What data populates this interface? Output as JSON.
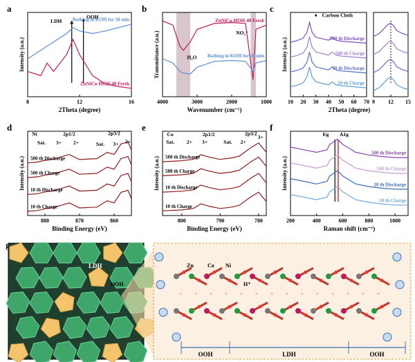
{
  "chart_data": [
    {
      "type": "line",
      "panel": "a",
      "xlabel": "2Theta (degree)",
      "ylabel": "Intensity (a.u.)",
      "xlim": [
        8,
        16
      ],
      "xticks": [
        8,
        12,
        16
      ],
      "ylim": [
        0,
        10
      ],
      "x": [
        8,
        9,
        9.5,
        10,
        11,
        11.5,
        12,
        13,
        14,
        15,
        16
      ],
      "series": [
        {
          "name": "Bathing in KOH for 30 min",
          "color": "#5b8fd0",
          "values": [
            4.5,
            5.5,
            6,
            6.5,
            7.5,
            8.2,
            7.8,
            7.5,
            7.8,
            8.2,
            8.6
          ]
        },
        {
          "name": "ZnNiCo-HOH-40 Fresh",
          "color": "#c2185b",
          "values": [
            3,
            2.5,
            4,
            3,
            5,
            6.8,
            5,
            2.5,
            1.5,
            1.2,
            1
          ]
        }
      ],
      "annotations": [
        "LDH",
        "♣",
        "OOH",
        "♦"
      ]
    },
    {
      "type": "line",
      "panel": "b",
      "xlabel": "Wavenumber (cm⁻¹)",
      "ylabel": "Transmittance (a.u.)",
      "xlim": [
        4000,
        1000
      ],
      "xticks": [
        4000,
        3000,
        2000,
        1000
      ],
      "ylim": [
        0,
        10
      ],
      "x": [
        4000,
        3700,
        3500,
        3400,
        3200,
        3000,
        2500,
        2000,
        1600,
        1384,
        1300,
        1000
      ],
      "series": [
        {
          "name": "ZnNiCo-HOH-40 Fresh",
          "color": "#c2185b",
          "values": [
            9,
            8.5,
            6,
            5.5,
            6.5,
            8,
            8.7,
            8.8,
            8.7,
            2,
            8,
            8.5
          ]
        },
        {
          "name": "Bathing in KOH for 30 min",
          "color": "#5b8fd0",
          "values": [
            4.5,
            4,
            3,
            2.8,
            2.7,
            3.5,
            4.2,
            4.3,
            4.2,
            3,
            4,
            4.3
          ]
        }
      ],
      "annotations": [
        "H₂O",
        "NO₃⁻"
      ]
    },
    {
      "type": "line",
      "panel": "c",
      "xlabel": "2Theta (degree)",
      "ylabel": "Intensity (a.u.)",
      "xlim": [
        10,
        70
      ],
      "xticks": [
        10,
        20,
        30,
        40,
        50,
        60,
        70
      ],
      "ylim": [
        0,
        17
      ],
      "x": [
        10,
        15,
        20,
        23,
        25,
        27,
        30,
        40,
        43,
        46,
        50,
        60,
        70
      ],
      "series": [
        {
          "name": "10 th Charge",
          "color": "#5b9bd5",
          "values": [
            2,
            2.3,
            2.8,
            4,
            6,
            4,
            3,
            2.4,
            3,
            2.4,
            2.2,
            2,
            1.8
          ]
        },
        {
          "name": "10 th Discharge",
          "color": "#5a6fc8",
          "values": [
            5,
            5.3,
            5.8,
            7,
            9,
            7,
            6,
            5.4,
            6,
            5.4,
            5.2,
            5,
            4.8
          ]
        },
        {
          "name": "500 th Charge",
          "color": "#a07cd0",
          "values": [
            8,
            8.3,
            8.8,
            10,
            12,
            10,
            9,
            8.4,
            9,
            8.4,
            8.2,
            8,
            7.8
          ]
        },
        {
          "name": "500 th Discharge",
          "color": "#7b4fc0",
          "values": [
            11,
            11.3,
            11.8,
            13,
            15,
            13,
            12,
            11.4,
            12,
            11.4,
            11.2,
            11,
            10.8
          ]
        }
      ],
      "annotations": [
        "♦",
        "Carbon Cloth"
      ]
    },
    {
      "type": "line",
      "xlim": [
        9,
        15
      ],
      "xticks": [
        9,
        12,
        15
      ],
      "ylim": [
        0,
        14
      ],
      "x": [
        9,
        10,
        11,
        11.5,
        12,
        12.5,
        13,
        14,
        15
      ],
      "series": [
        {
          "color": "#5b9bd5",
          "values": [
            1,
            1.5,
            2.5,
            3,
            3.2,
            2.8,
            2,
            1.5,
            1.2
          ]
        },
        {
          "color": "#5a6fc8",
          "values": [
            4,
            4.5,
            5.5,
            6,
            6.2,
            5.8,
            5,
            4.5,
            4.2
          ]
        },
        {
          "color": "#a07cd0",
          "values": [
            7,
            7.5,
            8.5,
            9,
            9.2,
            8.8,
            8,
            7.5,
            7.2
          ]
        },
        {
          "color": "#7b4fc0",
          "values": [
            10,
            10.5,
            11.5,
            12,
            12.2,
            11.8,
            11,
            10.5,
            10.2
          ]
        }
      ]
    },
    {
      "type": "line",
      "panel": "d",
      "xlabel": "Binding Energy (eV)",
      "ylabel": "Intensity (a.u.)",
      "xlim": [
        885,
        855
      ],
      "xticks": [
        880,
        870,
        860
      ],
      "ylim": [
        0,
        20
      ],
      "x": [
        885,
        882,
        880,
        878,
        875,
        873,
        870,
        865,
        862,
        860,
        858,
        856,
        855
      ],
      "series": [
        {
          "name": "10 th Charge",
          "color": "#8b1a1a",
          "values": [
            1,
            1.2,
            1.6,
            1.8,
            2.5,
            3,
            1.8,
            2,
            3.5,
            3,
            5.5,
            6,
            4
          ]
        },
        {
          "name": "10 th Discharge",
          "color": "#8b1a1a",
          "values": [
            5,
            5.2,
            5.6,
            5.8,
            6.5,
            7,
            5.8,
            6,
            7.5,
            7,
            9.5,
            10,
            8
          ]
        },
        {
          "name": "500 th Charge",
          "color": "#8b1a1a",
          "values": [
            9,
            9.2,
            9.6,
            9.8,
            10.5,
            11,
            9.8,
            10,
            11.5,
            11,
            13.5,
            14,
            12
          ]
        },
        {
          "name": "500 th Discharge",
          "color": "#8b1a1a",
          "values": [
            12.5,
            12.7,
            13.1,
            13.3,
            14,
            14.5,
            13.3,
            13.5,
            15,
            14.5,
            17,
            17.5,
            15.5
          ]
        }
      ],
      "annotations": [
        "Ni",
        "2p1/2",
        "2p3/2",
        "Sat.",
        "3+",
        "2+",
        "Sat.",
        "3+",
        "2+"
      ]
    },
    {
      "type": "line",
      "panel": "e",
      "xlabel": "Binding Energy (eV)",
      "ylabel": "Intensity (a.u.)",
      "xlim": [
        805,
        778
      ],
      "xticks": [
        800,
        790,
        780
      ],
      "ylim": [
        0,
        18
      ],
      "x": [
        805,
        800,
        797,
        795,
        793,
        790,
        787,
        785,
        782,
        780,
        778
      ],
      "series": [
        {
          "name": "10 th Charge",
          "color": "#8b1a1a",
          "values": [
            1,
            1.2,
            1.5,
            2.5,
            2,
            1.5,
            1.8,
            2.2,
            4,
            5,
            3
          ]
        },
        {
          "name": "10 th Discharge",
          "color": "#8b1a1a",
          "values": [
            5,
            5.2,
            5.5,
            6.5,
            6,
            5.5,
            5.8,
            6.2,
            8,
            9,
            7
          ]
        },
        {
          "name": "500 th Charge",
          "color": "#8b1a1a",
          "values": [
            8.5,
            8.7,
            9,
            10,
            9.5,
            9,
            9.3,
            9.7,
            11.5,
            12.5,
            10.5
          ]
        },
        {
          "name": "500 th Discharge",
          "color": "#8b1a1a",
          "values": [
            11.5,
            11.7,
            12,
            13,
            12.5,
            12,
            12.3,
            12.7,
            14.5,
            15.5,
            13.5
          ]
        }
      ],
      "annotations": [
        "Co",
        "2p1/2",
        "2p3/2",
        "Sat.",
        "2+",
        "3+",
        "Sat.",
        "2+",
        "3+"
      ]
    },
    {
      "type": "line",
      "panel": "f",
      "xlabel": "Raman shift (cm⁻¹)",
      "ylabel": "Intensity (a.u.)",
      "xlim": [
        200,
        1100
      ],
      "xticks": [
        200,
        400,
        600,
        800,
        1000
      ],
      "ylim": [
        0,
        16
      ],
      "x": [
        200,
        300,
        400,
        480,
        500,
        530,
        560,
        600,
        700,
        800,
        900,
        1000,
        1100
      ],
      "series": [
        {
          "name": "10 th Charge",
          "color": "#6fa8dc",
          "values": [
            4,
            3.5,
            3,
            3.5,
            4.5,
            5,
            5.5,
            4.5,
            3,
            2.5,
            2.2,
            2,
            2
          ]
        },
        {
          "name": "10 th Discharge",
          "color": "#3b6fb6",
          "values": [
            7,
            6.5,
            6,
            6.5,
            7.5,
            8,
            8.5,
            7.5,
            6,
            5.5,
            5.2,
            5,
            5
          ]
        },
        {
          "name": "500 th Charge",
          "color": "#c39bd3",
          "values": [
            10,
            9.5,
            9,
            9.5,
            10.5,
            11,
            11.5,
            10.5,
            9,
            8.5,
            8.2,
            8,
            8
          ]
        },
        {
          "name": "500 th Discharge",
          "color": "#8e44ad",
          "values": [
            13,
            12.5,
            12,
            12.5,
            13.5,
            14,
            14.5,
            13.5,
            12,
            11.5,
            11.2,
            11,
            11
          ]
        }
      ],
      "annotations": [
        "Eg",
        "A1g"
      ]
    }
  ],
  "diagram": {
    "panel": "g",
    "labels": [
      "LDH",
      "OOH",
      "Zn",
      "Co",
      "Ni",
      "H⁺",
      "OOH",
      "LDH",
      "OOH"
    ]
  }
}
